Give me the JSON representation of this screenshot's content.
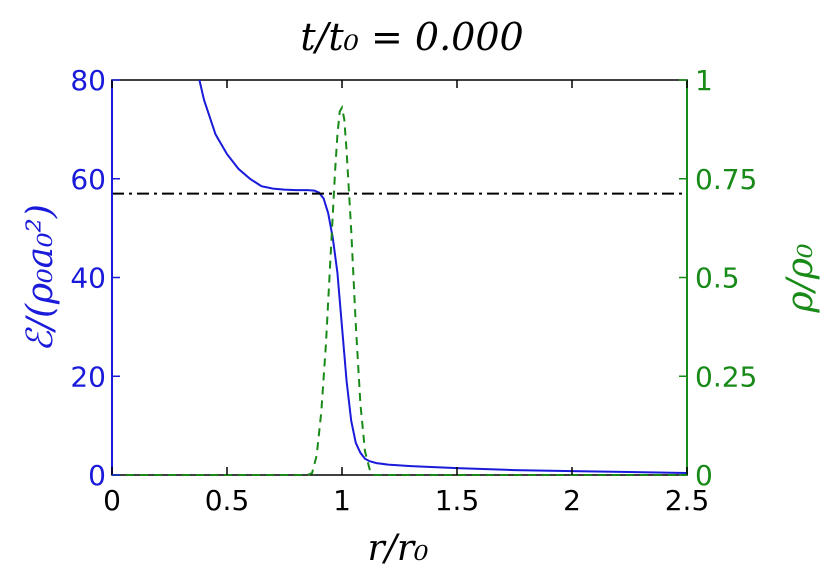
{
  "chart_data": {
    "type": "line",
    "title": "t/t₀ = 0.000",
    "xlabel": "r/r₀",
    "ylabel_left": "ℰ/(ρ₀a₀²)",
    "ylabel_right": "ρ/ρ₀",
    "xlim": [
      0,
      2.5
    ],
    "ylim_left": [
      0,
      80
    ],
    "ylim_right": [
      0,
      1
    ],
    "x_ticks": [
      0,
      0.5,
      1,
      1.5,
      2,
      2.5
    ],
    "x_tick_labels": [
      "0",
      "0.5",
      "1",
      "1.5",
      "2",
      "2.5"
    ],
    "y_left_ticks": [
      0,
      20,
      40,
      60,
      80
    ],
    "y_left_tick_labels": [
      "0",
      "20",
      "40",
      "60",
      "80"
    ],
    "y_right_ticks": [
      0,
      0.25,
      0.5,
      0.75,
      1
    ],
    "y_right_tick_labels": [
      "0",
      "0.25",
      "0.5",
      "0.75",
      "1"
    ],
    "grid": false,
    "colors": {
      "left": "#1a1adb",
      "right": "#178a17",
      "reference": "#000000"
    },
    "series": [
      {
        "axis": "left",
        "style": "solid",
        "x": [
          0.38,
          0.4,
          0.45,
          0.5,
          0.55,
          0.6,
          0.65,
          0.7,
          0.75,
          0.8,
          0.85,
          0.88,
          0.9,
          0.92,
          0.94,
          0.96,
          0.98,
          1.0,
          1.02,
          1.04,
          1.06,
          1.08,
          1.1,
          1.12,
          1.15,
          1.2,
          1.3,
          1.5,
          1.75,
          2.0,
          2.25,
          2.5
        ],
        "y": [
          80,
          76,
          69,
          65,
          62,
          60,
          58.5,
          58,
          57.8,
          57.7,
          57.7,
          57.6,
          57.2,
          56,
          53,
          48,
          41,
          30,
          19,
          11,
          6.5,
          4.5,
          3.3,
          2.8,
          2.4,
          2.1,
          1.8,
          1.4,
          1.0,
          0.8,
          0.6,
          0.4
        ]
      },
      {
        "axis": "right",
        "style": "dashed",
        "x": [
          0,
          0.85,
          0.87,
          0.89,
          0.91,
          0.93,
          0.95,
          0.97,
          0.98,
          0.99,
          1.0,
          1.01,
          1.02,
          1.04,
          1.06,
          1.08,
          1.1,
          1.12,
          1.14,
          2.5
        ],
        "y": [
          0,
          0,
          0.005,
          0.05,
          0.16,
          0.33,
          0.55,
          0.77,
          0.86,
          0.92,
          0.93,
          0.9,
          0.82,
          0.62,
          0.38,
          0.18,
          0.06,
          0.015,
          0,
          0
        ]
      },
      {
        "axis": "left",
        "style": "dashdot",
        "x": [
          0,
          2.5
        ],
        "y": [
          57,
          57
        ]
      }
    ]
  }
}
